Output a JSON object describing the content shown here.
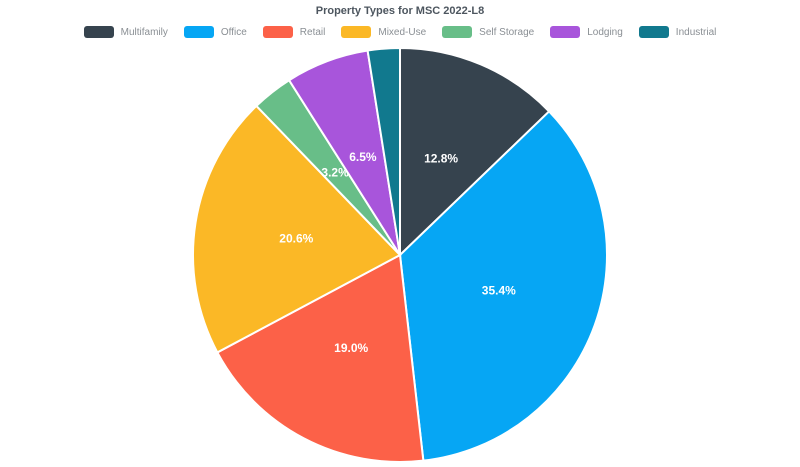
{
  "title": "Property Types for MSC 2022-L8",
  "chart_data": {
    "type": "pie",
    "title": "Property Types for MSC 2022-L8",
    "legend_position": "top",
    "direction": "clockwise",
    "start_angle_deg": 0,
    "label_color": "#ffffff",
    "series": [
      {
        "name": "Multifamily",
        "value": 12.8,
        "label": "12.8%",
        "color": "#36434e"
      },
      {
        "name": "Office",
        "value": 35.4,
        "label": "35.4%",
        "color": "#06a6f4"
      },
      {
        "name": "Retail",
        "value": 19.0,
        "label": "19.0%",
        "color": "#fc6148"
      },
      {
        "name": "Mixed-Use",
        "value": 20.6,
        "label": "20.6%",
        "color": "#fbb826"
      },
      {
        "name": "Self Storage",
        "value": 3.2,
        "label": "3.2%",
        "color": "#68be88"
      },
      {
        "name": "Lodging",
        "value": 6.5,
        "label": "6.5%",
        "color": "#a855db"
      },
      {
        "name": "Industrial",
        "value": 2.5,
        "label": "",
        "color": "#11798e"
      }
    ]
  }
}
